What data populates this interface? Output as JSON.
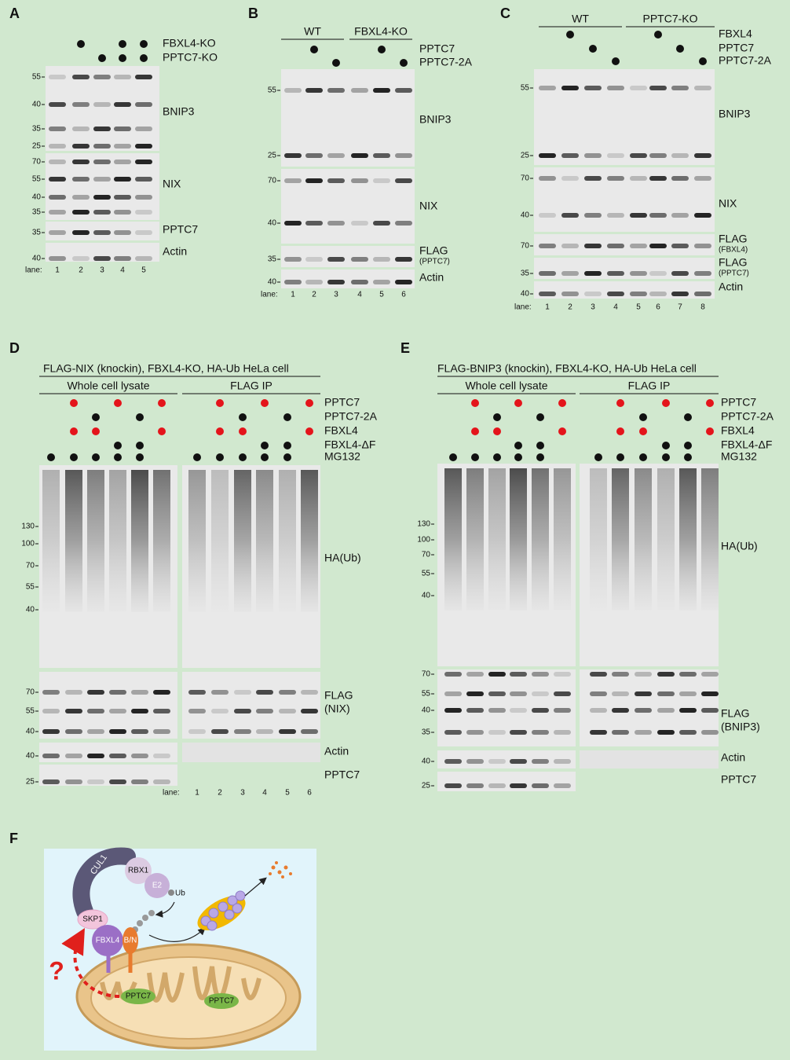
{
  "panels": [
    {
      "letter": "A",
      "conditions": [
        "FBXL4-KO",
        "PPTC7-KO"
      ],
      "blots": [
        {
          "label": "BNIP3",
          "markers": [
            55,
            40,
            35,
            25
          ]
        },
        {
          "label": "NIX",
          "markers": [
            70,
            55,
            40,
            35
          ]
        },
        {
          "label": "PPTC7",
          "markers": [
            35
          ]
        },
        {
          "label": "Actin",
          "markers": [
            40
          ]
        }
      ],
      "lane_label": "lane:",
      "lanes": [
        1,
        2,
        3,
        4,
        5
      ]
    },
    {
      "letter": "B",
      "groups": [
        "WT",
        "FBXL4-KO"
      ],
      "conditions": [
        "PPTC7",
        "PPTC7-2A"
      ],
      "blots": [
        {
          "label": "BNIP3",
          "markers": [
            55,
            25
          ]
        },
        {
          "label": "NIX",
          "markers": [
            70,
            40
          ]
        },
        {
          "label": "FLAG",
          "sublabel": "(PPTC7)",
          "markers": [
            35
          ]
        },
        {
          "label": "Actin",
          "markers": [
            40
          ]
        }
      ],
      "lane_label": "lane:",
      "lanes": [
        1,
        2,
        3,
        4,
        5,
        6
      ]
    },
    {
      "letter": "C",
      "groups": [
        "WT",
        "PPTC7-KO"
      ],
      "conditions": [
        "FBXL4",
        "PPTC7",
        "PPTC7-2A"
      ],
      "blots": [
        {
          "label": "BNIP3",
          "markers": [
            55,
            25
          ]
        },
        {
          "label": "NIX",
          "markers": [
            70,
            40
          ]
        },
        {
          "label": "FLAG",
          "sublabel": "(FBXL4)",
          "markers": [
            70
          ]
        },
        {
          "label": "FLAG",
          "sublabel": "(PPTC7)",
          "markers": [
            35
          ]
        },
        {
          "label": "Actin",
          "markers": [
            40
          ]
        }
      ],
      "lane_label": "lane:",
      "lanes": [
        1,
        2,
        3,
        4,
        5,
        6,
        7,
        8
      ]
    },
    {
      "letter": "D",
      "title": "FLAG-NIX (knockin), FBXL4-KO, HA-Ub HeLa cell",
      "groups": [
        "Whole cell lysate",
        "FLAG IP"
      ],
      "conditions": [
        "PPTC7",
        "PPTC7-2A",
        "FBXL4",
        "FBXL4-ΔF",
        "MG132"
      ],
      "blots": [
        {
          "label": "HA(Ub)",
          "markers": [
            130,
            100,
            70,
            55,
            40
          ]
        },
        {
          "label": "FLAG",
          "sublabel": "(NIX)",
          "markers": [
            70,
            55,
            40
          ]
        },
        {
          "label": "Actin",
          "markers": [
            40
          ]
        },
        {
          "label": "PPTC7",
          "markers": [
            25
          ]
        }
      ],
      "lane_label": "lane:",
      "lanes": [
        1,
        2,
        3,
        4,
        5,
        6
      ]
    },
    {
      "letter": "E",
      "title": "FLAG-BNIP3 (knockin), FBXL4-KO, HA-Ub HeLa cell",
      "groups": [
        "Whole cell lysate",
        "FLAG IP"
      ],
      "conditions": [
        "PPTC7",
        "PPTC7-2A",
        "FBXL4",
        "FBXL4-ΔF",
        "MG132"
      ],
      "blots": [
        {
          "label": "HA(Ub)",
          "markers": [
            130,
            100,
            70,
            55,
            40
          ]
        },
        {
          "label": "FLAG",
          "sublabel": "(BNIP3)",
          "markers": [
            70,
            55,
            40,
            35
          ]
        },
        {
          "label": "Actin",
          "markers": [
            40
          ]
        },
        {
          "label": "PPTC7",
          "markers": [
            25
          ]
        }
      ]
    }
  ],
  "diagram": {
    "letter": "F",
    "labels": {
      "cul1": "CUL1",
      "rbx1": "RBX1",
      "e2": "E2",
      "ub": "Ub",
      "skp1": "SKP1",
      "fbxl4": "FBXL4",
      "bn": "B/N",
      "pptc7_a": "PPTC7",
      "pptc7_b": "PPTC7",
      "question": "?"
    }
  }
}
